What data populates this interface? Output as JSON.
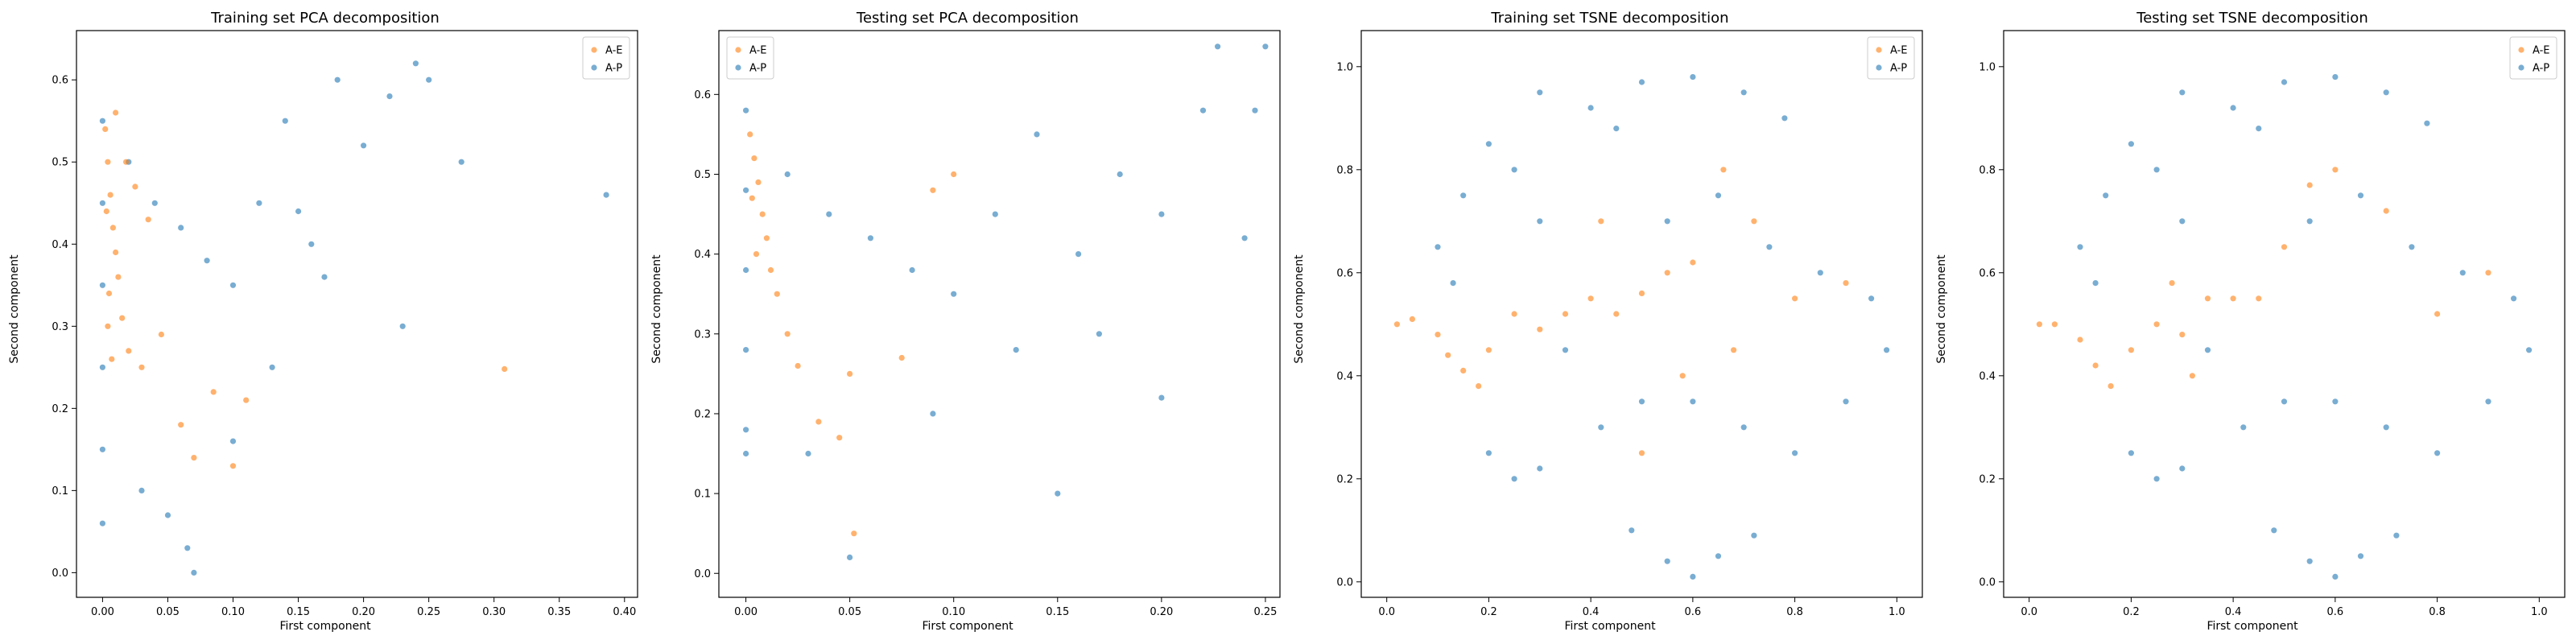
{
  "colors": {
    "A-E": "#ff7f0e",
    "A-P": "#1f77b4",
    "axes": "#000000",
    "background": "#ffffff",
    "legend_border": "#cccccc"
  },
  "chart_data": [
    {
      "type": "scatter",
      "title": "Training set PCA decomposition",
      "xlabel": "First component",
      "ylabel": "Second component",
      "xlim": [
        -0.02,
        0.41
      ],
      "ylim": [
        -0.03,
        0.66
      ],
      "xticks": [
        "0.00",
        "0.05",
        "0.10",
        "0.15",
        "0.20",
        "0.25",
        "0.30",
        "0.35",
        "0.40"
      ],
      "yticks": [
        "0.0",
        "0.1",
        "0.2",
        "0.3",
        "0.4",
        "0.5",
        "0.6"
      ],
      "legend": {
        "position": "top-right",
        "entries": [
          "A-E",
          "A-P"
        ]
      },
      "grid": false,
      "series": [
        {
          "name": "A-E",
          "color": "#ff7f0e",
          "points": [
            [
              0.002,
              0.54
            ],
            [
              0.004,
              0.5
            ],
            [
              0.006,
              0.46
            ],
            [
              0.003,
              0.44
            ],
            [
              0.008,
              0.42
            ],
            [
              0.01,
              0.39
            ],
            [
              0.012,
              0.36
            ],
            [
              0.005,
              0.34
            ],
            [
              0.015,
              0.31
            ],
            [
              0.02,
              0.27
            ],
            [
              0.03,
              0.25
            ],
            [
              0.01,
              0.56
            ],
            [
              0.018,
              0.5
            ],
            [
              0.025,
              0.47
            ],
            [
              0.035,
              0.43
            ],
            [
              0.045,
              0.29
            ],
            [
              0.06,
              0.18
            ],
            [
              0.07,
              0.14
            ],
            [
              0.085,
              0.22
            ],
            [
              0.1,
              0.13
            ],
            [
              0.11,
              0.21
            ],
            [
              0.308,
              0.248
            ],
            [
              0.004,
              0.3
            ],
            [
              0.007,
              0.26
            ]
          ]
        },
        {
          "name": "A-P",
          "color": "#1f77b4",
          "points": [
            [
              0.0,
              0.55
            ],
            [
              0.0,
              0.45
            ],
            [
              0.0,
              0.35
            ],
            [
              0.0,
              0.25
            ],
            [
              0.0,
              0.15
            ],
            [
              0.0,
              0.06
            ],
            [
              0.02,
              0.5
            ],
            [
              0.04,
              0.45
            ],
            [
              0.06,
              0.42
            ],
            [
              0.08,
              0.38
            ],
            [
              0.1,
              0.35
            ],
            [
              0.12,
              0.45
            ],
            [
              0.14,
              0.55
            ],
            [
              0.16,
              0.4
            ],
            [
              0.18,
              0.6
            ],
            [
              0.2,
              0.52
            ],
            [
              0.22,
              0.58
            ],
            [
              0.24,
              0.62
            ],
            [
              0.25,
              0.6
            ],
            [
              0.275,
              0.5
            ],
            [
              0.386,
              0.46
            ],
            [
              0.23,
              0.3
            ],
            [
              0.03,
              0.1
            ],
            [
              0.05,
              0.07
            ],
            [
              0.07,
              0.0
            ],
            [
              0.065,
              0.03
            ],
            [
              0.1,
              0.16
            ],
            [
              0.13,
              0.25
            ],
            [
              0.15,
              0.44
            ],
            [
              0.17,
              0.36
            ]
          ]
        }
      ]
    },
    {
      "type": "scatter",
      "title": "Testing set PCA decomposition",
      "xlabel": "First component",
      "ylabel": "Second component",
      "xlim": [
        -0.013,
        0.257
      ],
      "ylim": [
        -0.03,
        0.68
      ],
      "xticks": [
        "0.00",
        "0.05",
        "0.10",
        "0.15",
        "0.20",
        "0.25"
      ],
      "yticks": [
        "0.0",
        "0.1",
        "0.2",
        "0.3",
        "0.4",
        "0.5",
        "0.6"
      ],
      "legend": {
        "position": "top-left",
        "entries": [
          "A-E",
          "A-P"
        ]
      },
      "grid": false,
      "series": [
        {
          "name": "A-E",
          "color": "#ff7f0e",
          "points": [
            [
              0.002,
              0.55
            ],
            [
              0.004,
              0.52
            ],
            [
              0.006,
              0.49
            ],
            [
              0.003,
              0.47
            ],
            [
              0.008,
              0.45
            ],
            [
              0.01,
              0.42
            ],
            [
              0.012,
              0.38
            ],
            [
              0.015,
              0.35
            ],
            [
              0.02,
              0.3
            ],
            [
              0.025,
              0.26
            ],
            [
              0.035,
              0.19
            ],
            [
              0.045,
              0.17
            ],
            [
              0.052,
              0.05
            ],
            [
              0.05,
              0.25
            ],
            [
              0.075,
              0.27
            ],
            [
              0.1,
              0.5
            ],
            [
              0.09,
              0.48
            ],
            [
              0.005,
              0.4
            ]
          ]
        },
        {
          "name": "A-P",
          "color": "#1f77b4",
          "points": [
            [
              0.0,
              0.58
            ],
            [
              0.0,
              0.48
            ],
            [
              0.0,
              0.38
            ],
            [
              0.0,
              0.28
            ],
            [
              0.0,
              0.18
            ],
            [
              0.0,
              0.15
            ],
            [
              0.02,
              0.5
            ],
            [
              0.04,
              0.45
            ],
            [
              0.06,
              0.42
            ],
            [
              0.08,
              0.38
            ],
            [
              0.1,
              0.35
            ],
            [
              0.12,
              0.45
            ],
            [
              0.14,
              0.55
            ],
            [
              0.16,
              0.4
            ],
            [
              0.18,
              0.5
            ],
            [
              0.2,
              0.45
            ],
            [
              0.22,
              0.58
            ],
            [
              0.227,
              0.66
            ],
            [
              0.25,
              0.66
            ],
            [
              0.245,
              0.58
            ],
            [
              0.24,
              0.42
            ],
            [
              0.15,
              0.1
            ],
            [
              0.2,
              0.22
            ],
            [
              0.05,
              0.02
            ],
            [
              0.03,
              0.15
            ],
            [
              0.09,
              0.2
            ],
            [
              0.13,
              0.28
            ],
            [
              0.17,
              0.3
            ]
          ]
        }
      ]
    },
    {
      "type": "scatter",
      "title": "Training set TSNE decomposition",
      "xlabel": "First component",
      "ylabel": "Second component",
      "xlim": [
        -0.05,
        1.05
      ],
      "ylim": [
        -0.03,
        1.07
      ],
      "xticks": [
        "0.0",
        "0.2",
        "0.4",
        "0.6",
        "0.8",
        "1.0"
      ],
      "yticks": [
        "0.0",
        "0.2",
        "0.4",
        "0.6",
        "0.8",
        "1.0"
      ],
      "legend": {
        "position": "top-right",
        "entries": [
          "A-E",
          "A-P"
        ]
      },
      "grid": false,
      "series": [
        {
          "name": "A-E",
          "color": "#ff7f0e",
          "points": [
            [
              0.02,
              0.5
            ],
            [
              0.05,
              0.51
            ],
            [
              0.1,
              0.48
            ],
            [
              0.12,
              0.44
            ],
            [
              0.15,
              0.41
            ],
            [
              0.18,
              0.38
            ],
            [
              0.2,
              0.45
            ],
            [
              0.25,
              0.52
            ],
            [
              0.3,
              0.49
            ],
            [
              0.35,
              0.52
            ],
            [
              0.4,
              0.55
            ],
            [
              0.45,
              0.52
            ],
            [
              0.5,
              0.56
            ],
            [
              0.55,
              0.6
            ],
            [
              0.6,
              0.62
            ],
            [
              0.66,
              0.8
            ],
            [
              0.58,
              0.4
            ],
            [
              0.68,
              0.45
            ],
            [
              0.72,
              0.7
            ],
            [
              0.8,
              0.55
            ],
            [
              0.9,
              0.58
            ],
            [
              0.42,
              0.7
            ],
            [
              0.5,
              0.25
            ]
          ]
        },
        {
          "name": "A-P",
          "color": "#1f77b4",
          "points": [
            [
              0.1,
              0.65
            ],
            [
              0.15,
              0.75
            ],
            [
              0.2,
              0.85
            ],
            [
              0.25,
              0.8
            ],
            [
              0.3,
              0.7
            ],
            [
              0.13,
              0.58
            ],
            [
              0.3,
              0.95
            ],
            [
              0.4,
              0.92
            ],
            [
              0.5,
              0.97
            ],
            [
              0.6,
              0.98
            ],
            [
              0.7,
              0.95
            ],
            [
              0.78,
              0.9
            ],
            [
              0.45,
              0.88
            ],
            [
              0.55,
              0.7
            ],
            [
              0.65,
              0.75
            ],
            [
              0.75,
              0.65
            ],
            [
              0.85,
              0.6
            ],
            [
              0.95,
              0.55
            ],
            [
              0.98,
              0.45
            ],
            [
              0.9,
              0.35
            ],
            [
              0.8,
              0.25
            ],
            [
              0.7,
              0.3
            ],
            [
              0.6,
              0.35
            ],
            [
              0.5,
              0.35
            ],
            [
              0.42,
              0.3
            ],
            [
              0.35,
              0.45
            ],
            [
              0.2,
              0.25
            ],
            [
              0.25,
              0.2
            ],
            [
              0.3,
              0.22
            ],
            [
              0.48,
              0.1
            ],
            [
              0.55,
              0.04
            ],
            [
              0.6,
              0.01
            ],
            [
              0.65,
              0.05
            ],
            [
              0.72,
              0.09
            ]
          ]
        }
      ]
    },
    {
      "type": "scatter",
      "title": "Testing set TSNE decomposition",
      "xlabel": "First component",
      "ylabel": "Second component",
      "xlim": [
        -0.05,
        1.05
      ],
      "ylim": [
        -0.03,
        1.07
      ],
      "xticks": [
        "0.0",
        "0.2",
        "0.4",
        "0.6",
        "0.8",
        "1.0"
      ],
      "yticks": [
        "0.0",
        "0.2",
        "0.4",
        "0.6",
        "0.8",
        "1.0"
      ],
      "legend": {
        "position": "top-right",
        "entries": [
          "A-E",
          "A-P"
        ]
      },
      "grid": false,
      "series": [
        {
          "name": "A-E",
          "color": "#ff7f0e",
          "points": [
            [
              0.02,
              0.5
            ],
            [
              0.05,
              0.5
            ],
            [
              0.1,
              0.47
            ],
            [
              0.13,
              0.42
            ],
            [
              0.16,
              0.38
            ],
            [
              0.2,
              0.45
            ],
            [
              0.25,
              0.5
            ],
            [
              0.3,
              0.48
            ],
            [
              0.35,
              0.55
            ],
            [
              0.4,
              0.55
            ],
            [
              0.45,
              0.55
            ],
            [
              0.55,
              0.77
            ],
            [
              0.6,
              0.8
            ],
            [
              0.7,
              0.72
            ],
            [
              0.8,
              0.52
            ],
            [
              0.9,
              0.6
            ],
            [
              0.5,
              0.65
            ],
            [
              0.28,
              0.58
            ],
            [
              0.32,
              0.4
            ]
          ]
        },
        {
          "name": "A-P",
          "color": "#1f77b4",
          "points": [
            [
              0.1,
              0.65
            ],
            [
              0.15,
              0.75
            ],
            [
              0.2,
              0.85
            ],
            [
              0.25,
              0.8
            ],
            [
              0.3,
              0.7
            ],
            [
              0.13,
              0.58
            ],
            [
              0.3,
              0.95
            ],
            [
              0.4,
              0.92
            ],
            [
              0.5,
              0.97
            ],
            [
              0.6,
              0.98
            ],
            [
              0.7,
              0.95
            ],
            [
              0.78,
              0.89
            ],
            [
              0.45,
              0.88
            ],
            [
              0.55,
              0.7
            ],
            [
              0.65,
              0.75
            ],
            [
              0.75,
              0.65
            ],
            [
              0.85,
              0.6
            ],
            [
              0.95,
              0.55
            ],
            [
              0.98,
              0.45
            ],
            [
              0.9,
              0.35
            ],
            [
              0.8,
              0.25
            ],
            [
              0.7,
              0.3
            ],
            [
              0.6,
              0.35
            ],
            [
              0.5,
              0.35
            ],
            [
              0.42,
              0.3
            ],
            [
              0.35,
              0.45
            ],
            [
              0.2,
              0.25
            ],
            [
              0.25,
              0.2
            ],
            [
              0.3,
              0.22
            ],
            [
              0.48,
              0.1
            ],
            [
              0.55,
              0.04
            ],
            [
              0.6,
              0.01
            ],
            [
              0.65,
              0.05
            ],
            [
              0.72,
              0.09
            ]
          ]
        }
      ]
    }
  ]
}
